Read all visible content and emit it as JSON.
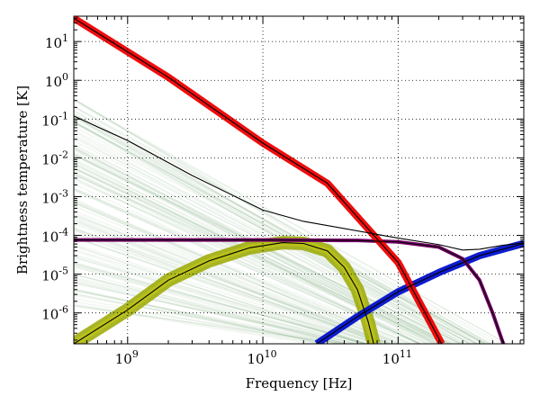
{
  "chart_data": {
    "type": "line",
    "title": "",
    "xlabel": "Frequency [Hz]",
    "ylabel": "Brightness temperature [K]",
    "x_scale": "log",
    "y_scale": "log",
    "xlim": [
      400000000.0,
      850000000000.0
    ],
    "ylim": [
      1.6e-07,
      45
    ],
    "grid": true,
    "legend": "none",
    "x_ticks": [
      {
        "value": 1000000000.0,
        "label": "10",
        "exp": "9"
      },
      {
        "value": 10000000000.0,
        "label": "10",
        "exp": "10"
      },
      {
        "value": 100000000000.0,
        "label": "10",
        "exp": "11"
      }
    ],
    "y_ticks": [
      {
        "value": 1e-06,
        "label": "10",
        "exp": "-6"
      },
      {
        "value": 1e-05,
        "label": "10",
        "exp": "-5"
      },
      {
        "value": 0.0001,
        "label": "10",
        "exp": "-4"
      },
      {
        "value": 0.001,
        "label": "10",
        "exp": "-3"
      },
      {
        "value": 0.01,
        "label": "10",
        "exp": "-2"
      },
      {
        "value": 0.1,
        "label": "10",
        "exp": "-1"
      },
      {
        "value": 1,
        "label": "10",
        "exp": "0"
      },
      {
        "value": 10,
        "label": "10",
        "exp": "1"
      }
    ],
    "colors": {
      "synchrotron_band": "#ee0000",
      "free_free_band": "#9aa800",
      "free_free_band_light": "#c8cc10",
      "dust_band": "#0010cc",
      "cmb_band": "#7a006a",
      "ensemble": "#3a7a3a",
      "model_line": "#000000",
      "grid": "#000000"
    },
    "ensemble_band": {
      "description": "many power-law samples",
      "upper": [
        [
          400000000.0,
          0.35
        ],
        [
          500000000000.0,
          1.8e-07
        ]
      ],
      "lower": [
        [
          400000000.0,
          1.5e-06
        ],
        [
          30000000000.0,
          1.6e-07
        ]
      ]
    },
    "series": [
      {
        "values": [
          [
            400000000.0,
            40
          ],
          [
            2000000000.0,
            1.2
          ],
          [
            10000000000.0,
            0.024
          ],
          [
            30000000000.0,
            0.0022
          ],
          [
            100000000000.0,
            2e-05
          ],
          [
            210000000000.0,
            1.6e-07
          ]
        ]
      },
      {
        "values": [
          [
            400000000.0,
            1.6e-07
          ],
          [
            1000000000.0,
            1.2e-06
          ],
          [
            2000000000.0,
            7e-06
          ],
          [
            4000000000.0,
            2.2e-05
          ],
          [
            8000000000.0,
            4.8e-05
          ],
          [
            14000000000.0,
            6.5e-05
          ],
          [
            20000000000.0,
            6.2e-05
          ],
          [
            30000000000.0,
            4e-05
          ],
          [
            40000000000.0,
            1.5e-05
          ],
          [
            50000000000.0,
            4e-06
          ],
          [
            60000000000.0,
            6e-07
          ],
          [
            66000000000.0,
            1.6e-07
          ]
        ]
      },
      {
        "values": [
          [
            25000000000.0,
            1.6e-07
          ],
          [
            50000000000.0,
            8e-07
          ],
          [
            100000000000.0,
            3.5e-06
          ],
          [
            200000000000.0,
            1.1e-05
          ],
          [
            400000000000.0,
            3e-05
          ],
          [
            850000000000.0,
            6.2e-05
          ]
        ]
      },
      {
        "values": [
          [
            400000000.0,
            7.6e-05
          ],
          [
            10000000000.0,
            7.6e-05
          ],
          [
            50000000000.0,
            7.4e-05
          ],
          [
            100000000000.0,
            6.8e-05
          ],
          [
            200000000000.0,
            5e-05
          ],
          [
            300000000000.0,
            2.5e-05
          ],
          [
            400000000000.0,
            7e-06
          ],
          [
            500000000000.0,
            1e-06
          ],
          [
            600000000000.0,
            1.6e-07
          ]
        ]
      },
      {
        "values": [
          [
            400000000.0,
            0.12
          ],
          [
            1000000000.0,
            0.028
          ],
          [
            3000000000.0,
            0.0035
          ],
          [
            10000000000.0,
            0.00045
          ],
          [
            20000000000.0,
            0.00023
          ],
          [
            40000000000.0,
            0.00015
          ],
          [
            100000000000.0,
            8.5e-05
          ],
          [
            200000000000.0,
            5.8e-05
          ],
          [
            300000000000.0,
            4.2e-05
          ],
          [
            400000000000.0,
            4.4e-05
          ],
          [
            600000000000.0,
            5.6e-05
          ],
          [
            850000000000.0,
            6.4e-05
          ]
        ]
      }
    ]
  }
}
